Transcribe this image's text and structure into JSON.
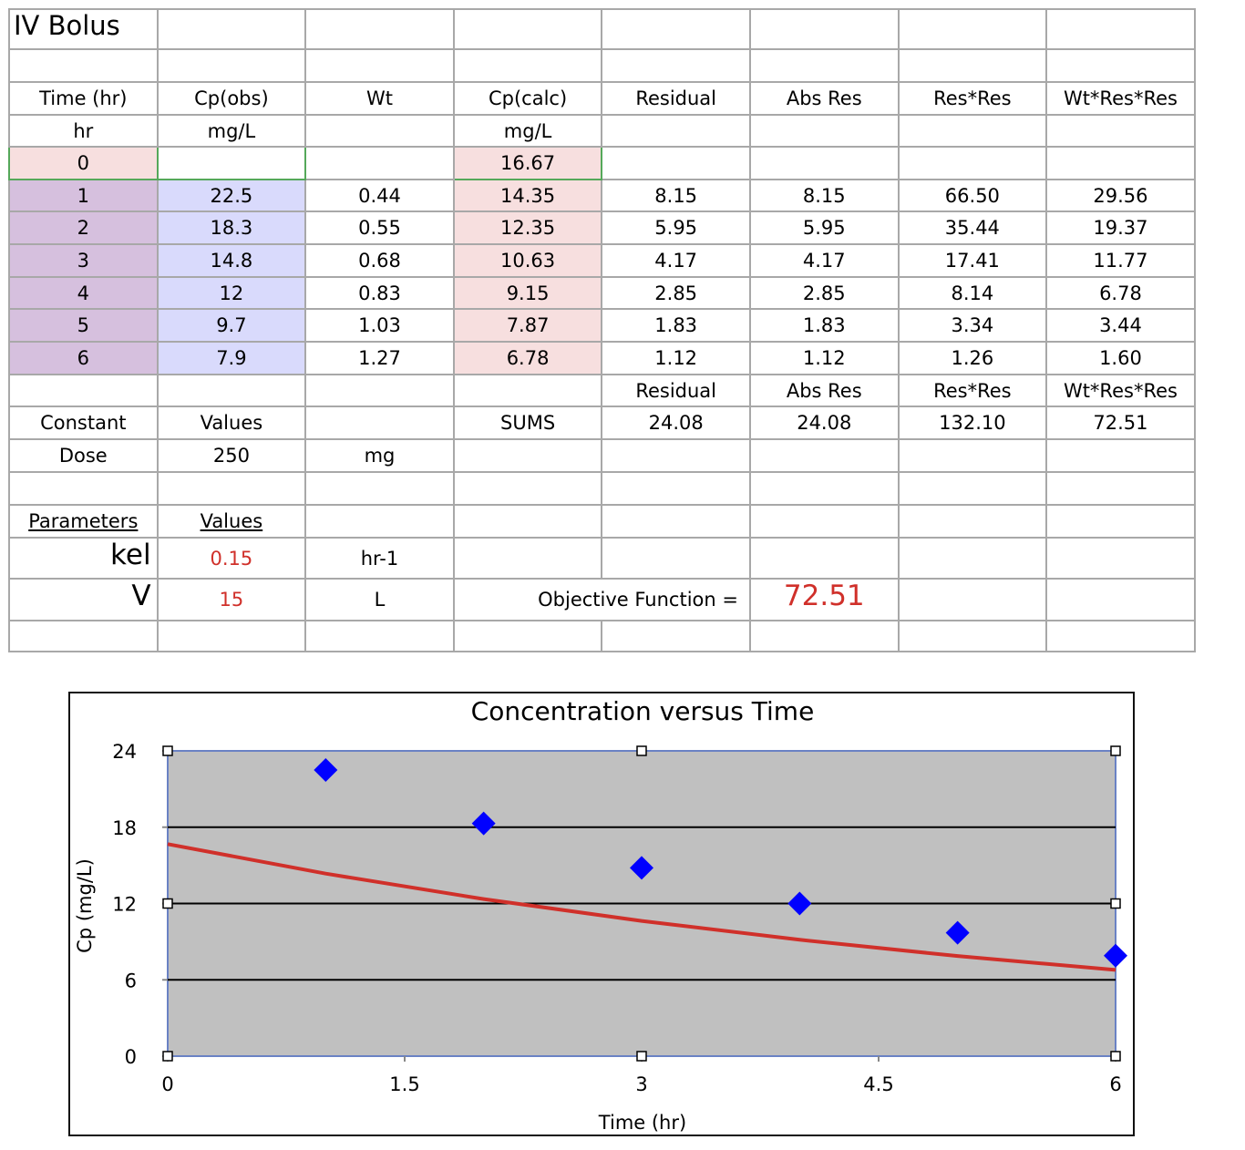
{
  "sheet": {
    "title": "IV Bolus",
    "headers": [
      "Time (hr)",
      "Cp(obs)",
      "Wt",
      "Cp(calc)",
      "Residual",
      "Abs Res",
      "Res*Res",
      "Wt*Res*Res"
    ],
    "units": [
      "hr",
      "mg/L",
      "",
      "mg/L",
      "",
      "",
      "",
      ""
    ],
    "time0_row": {
      "time": "0",
      "cp_calc": "16.67"
    },
    "rows": [
      {
        "time": "1",
        "cp_obs": "22.5",
        "wt": "0.44",
        "cp_calc": "14.35",
        "residual": "8.15",
        "abs_res": "8.15",
        "res_res": "66.50",
        "wt_res_res": "29.56"
      },
      {
        "time": "2",
        "cp_obs": "18.3",
        "wt": "0.55",
        "cp_calc": "12.35",
        "residual": "5.95",
        "abs_res": "5.95",
        "res_res": "35.44",
        "wt_res_res": "19.37"
      },
      {
        "time": "3",
        "cp_obs": "14.8",
        "wt": "0.68",
        "cp_calc": "10.63",
        "residual": "4.17",
        "abs_res": "4.17",
        "res_res": "17.41",
        "wt_res_res": "11.77"
      },
      {
        "time": "4",
        "cp_obs": "12",
        "wt": "0.83",
        "cp_calc": "9.15",
        "residual": "2.85",
        "abs_res": "2.85",
        "res_res": "8.14",
        "wt_res_res": "6.78"
      },
      {
        "time": "5",
        "cp_obs": "9.7",
        "wt": "1.03",
        "cp_calc": "7.87",
        "residual": "1.83",
        "abs_res": "1.83",
        "res_res": "3.34",
        "wt_res_res": "3.44"
      },
      {
        "time": "6",
        "cp_obs": "7.9",
        "wt": "1.27",
        "cp_calc": "6.78",
        "residual": "1.12",
        "abs_res": "1.12",
        "res_res": "1.26",
        "wt_res_res": "1.60"
      }
    ],
    "sums_headers": [
      "Residual",
      "Abs Res",
      "Res*Res",
      "Wt*Res*Res"
    ],
    "sums_label": "SUMS",
    "sums": [
      "24.08",
      "24.08",
      "132.10",
      "72.51"
    ],
    "constant_label": "Constant",
    "values_label": "Values",
    "dose": {
      "label": "Dose",
      "value": "250",
      "unit": "mg"
    },
    "parameters_label": "Parameters",
    "parameters_values_label": "Values",
    "kel": {
      "label": "kel",
      "value": "0.15",
      "unit": "hr-1"
    },
    "v": {
      "label": "V",
      "value": "15",
      "unit": "L"
    },
    "objective": {
      "label": "Objective Function =",
      "value": "72.51"
    }
  },
  "colors": {
    "observed_marker": "#0000ff",
    "fit_line": "#d0302a",
    "plot_bg": "#c0c0c0",
    "input_pink": "#f7dfdf",
    "time_purple": "#d6c0de",
    "obs_blue": "#d9dafc",
    "highlight_red": "#d0302a"
  },
  "chart_data": {
    "type": "scatter",
    "title": "Concentration versus Time",
    "xlabel": "Time (hr)",
    "ylabel": "Cp (mg/L)",
    "xlim": [
      0,
      6
    ],
    "ylim": [
      0,
      24
    ],
    "xticks": [
      0,
      1.5,
      3,
      4.5,
      6
    ],
    "xtick_labels": [
      "0",
      "1.5",
      "3",
      "4.5",
      "6"
    ],
    "yticks": [
      0,
      6,
      12,
      18,
      24
    ],
    "ytick_labels": [
      "0",
      "6",
      "12",
      "18",
      "24"
    ],
    "grid": "horizontal",
    "legend": "none",
    "series": [
      {
        "name": "Cp(obs)",
        "kind": "markers",
        "marker": "diamond",
        "x": [
          1,
          2,
          3,
          4,
          5,
          6
        ],
        "y": [
          22.5,
          18.3,
          14.8,
          12,
          9.7,
          7.9
        ]
      },
      {
        "name": "Cp(calc)",
        "kind": "line",
        "x": [
          0,
          1,
          2,
          3,
          4,
          5,
          6
        ],
        "y": [
          16.67,
          14.35,
          12.35,
          10.63,
          9.15,
          7.87,
          6.78
        ]
      }
    ]
  }
}
